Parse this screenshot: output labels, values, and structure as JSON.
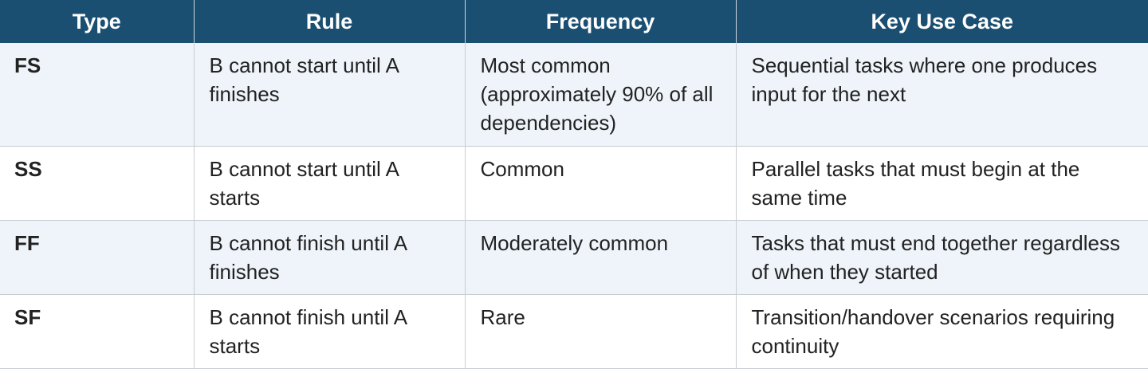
{
  "table": {
    "headers": [
      "Type",
      "Rule",
      "Frequency",
      "Key Use Case"
    ],
    "rows": [
      {
        "type": "FS",
        "rule": "B cannot start until A finishes",
        "frequency": "Most common (approximately 90% of all dependencies)",
        "use_case": "Sequential tasks where one produces input for the next"
      },
      {
        "type": "SS",
        "rule": "B cannot start until A starts",
        "frequency": "Common",
        "use_case": "Parallel tasks that must begin at the same time"
      },
      {
        "type": "FF",
        "rule": "B cannot finish until A finishes",
        "frequency": "Moderately common",
        "use_case": "Tasks that must end together regardless of when they started"
      },
      {
        "type": "SF",
        "rule": "B cannot finish until A starts",
        "frequency": "Rare",
        "use_case": "Transition/handover scenarios requiring continuity"
      }
    ]
  },
  "colors": {
    "header_bg": "#1b4f72",
    "header_text": "#ffffff",
    "row_alt_bg": "#eef4fa"
  }
}
